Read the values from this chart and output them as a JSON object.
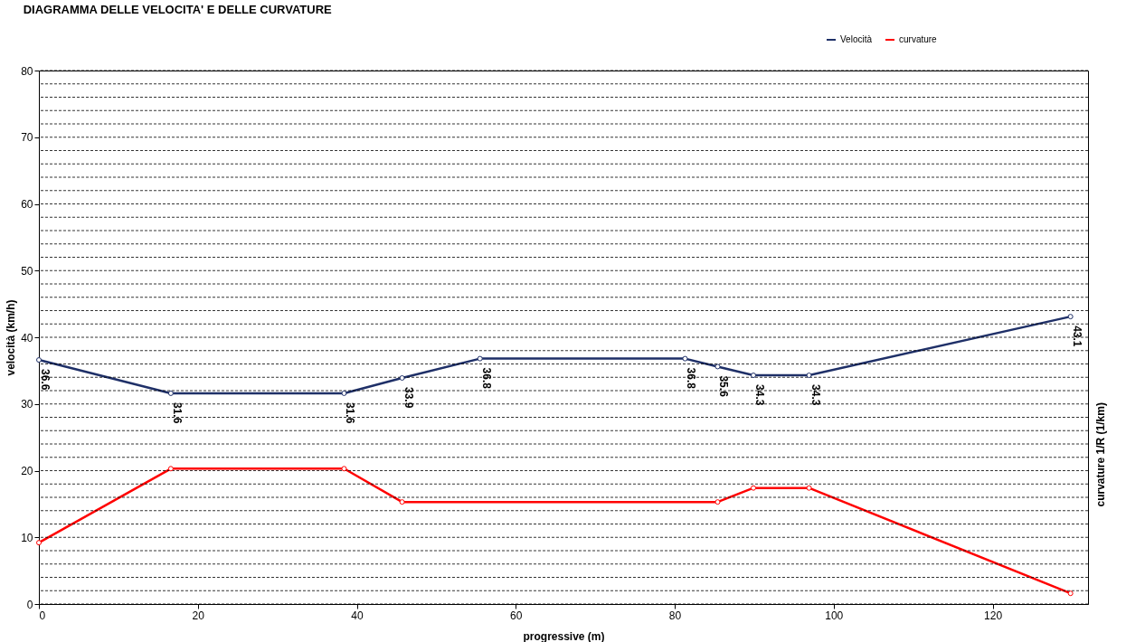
{
  "chart_data": {
    "type": "line",
    "title": "DIAGRAMMA DELLE VELOCITA' E DELLE CURVATURE",
    "xlabel": "progressive (m)",
    "ylabel": "velocità  (km/h)",
    "y2label": "curvature 1/R (1/km)",
    "series": [
      {
        "name": "Velocità",
        "color": "#1f3068",
        "x": [
          0,
          16.6,
          38.4,
          45.7,
          55.5,
          81.3,
          85.4,
          89.9,
          96.9,
          129.8
        ],
        "values": [
          36.6,
          31.6,
          31.6,
          33.9,
          36.8,
          36.8,
          35.6,
          34.3,
          34.3,
          43.1
        ],
        "value_labels": [
          "36.6",
          "31.6",
          "31.6",
          "33.9",
          "36.8",
          "36.8",
          "35.6",
          "34.3",
          "34.3",
          "43.1"
        ]
      },
      {
        "name": "curvature",
        "color": "#ff0000",
        "x": [
          0,
          16.6,
          38.4,
          45.7,
          85.4,
          89.9,
          96.9,
          129.8
        ],
        "values": [
          9.2,
          20.3,
          20.3,
          15.3,
          15.3,
          17.4,
          17.4,
          1.6
        ]
      }
    ],
    "xlim": [
      0,
      132
    ],
    "xticks": [
      0,
      20,
      40,
      60,
      80,
      100,
      120
    ],
    "ylim": [
      0,
      80
    ],
    "yticks": [
      0,
      {
        "value": 2,
        "label": null
      },
      {
        "value": 4,
        "label": null
      },
      {
        "value": 6,
        "label": null
      },
      {
        "value": 8,
        "label": null
      },
      10,
      {
        "value": 12,
        "label": null
      },
      {
        "value": 14,
        "label": null
      },
      {
        "value": 16,
        "label": null
      },
      {
        "value": 18,
        "label": null
      },
      20,
      {
        "value": 22,
        "label": null
      },
      {
        "value": 24,
        "label": null
      },
      {
        "value": 26,
        "label": null
      },
      {
        "value": 28,
        "label": null
      },
      30,
      {
        "value": 32,
        "label": null
      },
      {
        "value": 34,
        "label": null
      },
      {
        "value": 36,
        "label": null
      },
      {
        "value": 38,
        "label": null
      },
      40,
      {
        "value": 42,
        "label": null
      },
      {
        "value": 44,
        "label": null
      },
      {
        "value": 46,
        "label": null
      },
      {
        "value": 48,
        "label": null
      },
      50,
      {
        "value": 52,
        "label": null
      },
      {
        "value": 54,
        "label": null
      },
      {
        "value": 56,
        "label": null
      },
      {
        "value": 58,
        "label": null
      },
      60,
      {
        "value": 62,
        "label": null
      },
      {
        "value": 64,
        "label": null
      },
      {
        "value": 66,
        "label": null
      },
      {
        "value": 68,
        "label": null
      },
      70,
      {
        "value": 72,
        "label": null
      },
      {
        "value": 74,
        "label": null
      },
      {
        "value": 76,
        "label": null
      },
      {
        "value": 78,
        "label": null
      },
      80
    ],
    "grid": "y",
    "legend": "top right",
    "marker": "circle",
    "line_style": "solid"
  }
}
